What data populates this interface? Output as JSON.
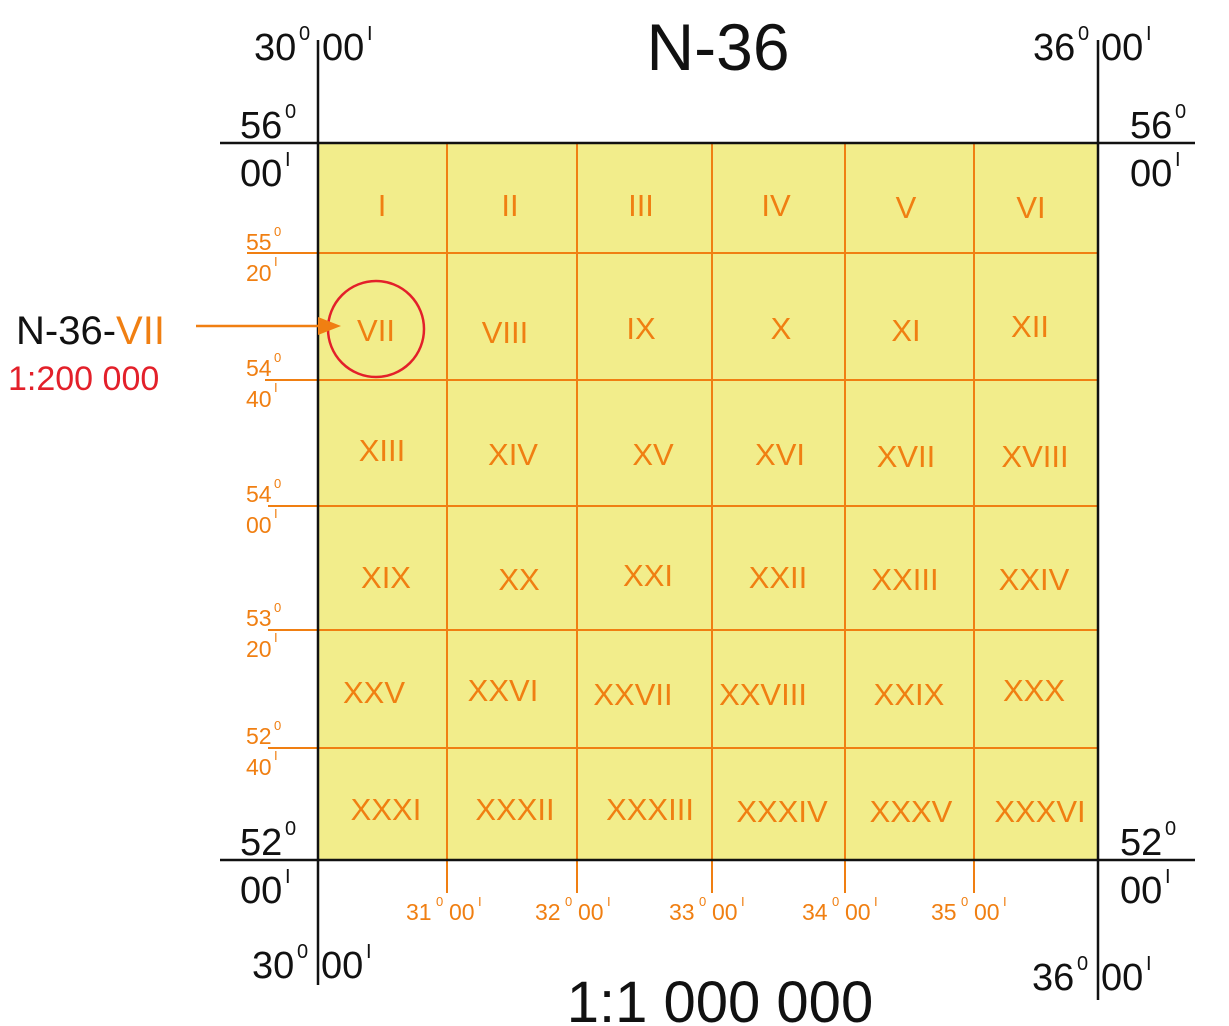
{
  "sheet": {
    "title": "N-36",
    "scale": "1:1 000 000",
    "fill_color": "#f2ed8b",
    "grid_color": "#f07f12",
    "frame_color": "#111111"
  },
  "corners": {
    "top_left_lon": [
      "30",
      "0",
      "00",
      "I"
    ],
    "top_right_lon": [
      "36",
      "0",
      "00",
      "I"
    ],
    "bottom_left_lon": [
      "30",
      "0",
      "00",
      "I"
    ],
    "bottom_right_lon": [
      "36",
      "0",
      "00",
      "I"
    ],
    "top_left_lat": [
      "56",
      "0",
      "00",
      "I"
    ],
    "top_right_lat": [
      "56",
      "0",
      "00",
      "I"
    ],
    "bottom_left_lat": [
      "52",
      "0",
      "00",
      "I"
    ],
    "bottom_right_lat": [
      "52",
      "0",
      "00",
      "I"
    ]
  },
  "lat_labels": [
    {
      "deg": "55",
      "sup": "0",
      "min": "20",
      "min_sup": "I"
    },
    {
      "deg": "54",
      "sup": "0",
      "min": "40",
      "min_sup": "I"
    },
    {
      "deg": "54",
      "sup": "0",
      "min": "00",
      "min_sup": "I"
    },
    {
      "deg": "53",
      "sup": "0",
      "min": "20",
      "min_sup": "I"
    },
    {
      "deg": "52",
      "sup": "0",
      "min": "40",
      "min_sup": "I"
    }
  ],
  "lon_labels": [
    {
      "deg": "31",
      "sup": "0",
      "min": "00",
      "min_sup": "I"
    },
    {
      "deg": "32",
      "sup": "0",
      "min": "00",
      "min_sup": "I"
    },
    {
      "deg": "33",
      "sup": "0",
      "min": "00",
      "min_sup": "I"
    },
    {
      "deg": "34",
      "sup": "0",
      "min": "00",
      "min_sup": "I"
    },
    {
      "deg": "35",
      "sup": "0",
      "min": "00",
      "min_sup": "I"
    }
  ],
  "cells": [
    [
      "I",
      "II",
      "III",
      "IV",
      "V",
      "VI"
    ],
    [
      "VII",
      "VIII",
      "IX",
      "X",
      "XI",
      "XII"
    ],
    [
      "XIII",
      "XIV",
      "XV",
      "XVI",
      "XVII",
      "XVIII"
    ],
    [
      "XIX",
      "XX",
      "XXI",
      "XXII",
      "XXIII",
      "XXIV"
    ],
    [
      "XXV",
      "XXVI",
      "XXVII",
      "XXVIII",
      "XXIX",
      "XXX"
    ],
    [
      "XXXI",
      "XXXII",
      "XXXIII",
      "XXXIV",
      "XXXV",
      "XXXVI"
    ]
  ],
  "callout": {
    "prefix": "N-36-",
    "sheet": "VII",
    "scale": "1:200 000",
    "highlight_color": "#e3202a"
  }
}
